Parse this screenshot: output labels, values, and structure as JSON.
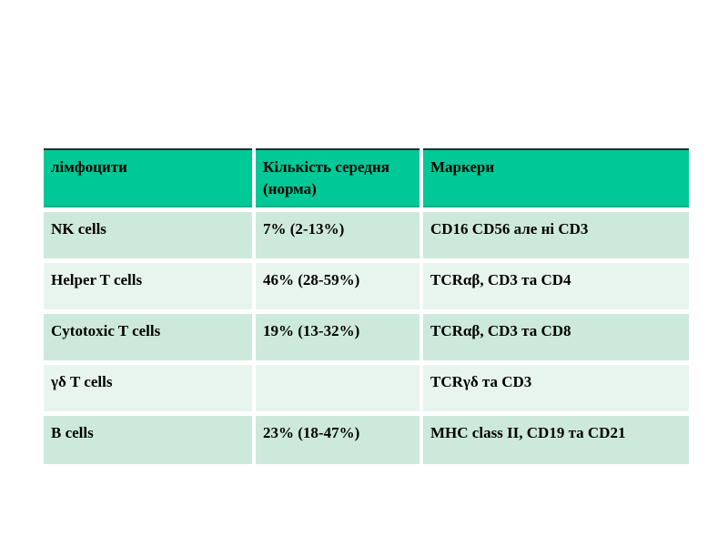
{
  "slide": {
    "background": "#ffffff"
  },
  "theme": {
    "slide-bg": "#ffffff",
    "header-bg": "#00c896",
    "header-top-border": "#2b2b2b",
    "header-bottom-border": "#00b389",
    "row-odd-bg": "#cde9dc",
    "row-even-bg": "#e8f5ee",
    "cell-text": "#000000",
    "gap-color": "#ffffff"
  },
  "table": {
    "columns": [
      {
        "label": "лімфоцити"
      },
      {
        "label": "Кількість середня (норма)"
      },
      {
        "label": "Маркери"
      }
    ],
    "rows": [
      {
        "cells": [
          "NK cells",
          "7% (2-13%)",
          "CD16 CD56 але ні CD3"
        ]
      },
      {
        "cells": [
          "Helper T cells",
          "46% (28-59%)",
          "TCRαβ, CD3 та CD4"
        ]
      },
      {
        "cells": [
          "Cytotoxic T cells",
          "19% (13-32%)",
          "TCRαβ, CD3 та CD8"
        ]
      },
      {
        "cells": [
          "γδ T cells",
          "",
          "TCRγδ та CD3"
        ]
      },
      {
        "cells": [
          "B cells",
          "23% (18-47%)",
          "MHC class II, CD19 та CD21"
        ]
      }
    ]
  },
  "chart_data": {
    "type": "table",
    "title": "",
    "columns": [
      "лімфоцити",
      "Кількість середня (норма)",
      "Маркери"
    ],
    "rows": [
      [
        "NK cells",
        "7% (2-13%)",
        "CD16 CD56 але ні CD3"
      ],
      [
        "Helper T cells",
        "46% (28-59%)",
        "TCRαβ, CD3 та CD4"
      ],
      [
        "Cytotoxic T cells",
        "19% (13-32%)",
        "TCRαβ, CD3 та CD8"
      ],
      [
        "γδ T cells",
        "",
        "TCRγδ та CD3"
      ],
      [
        "B cells",
        "23% (18-47%)",
        "MHC class II, CD19 та CD21"
      ]
    ]
  }
}
